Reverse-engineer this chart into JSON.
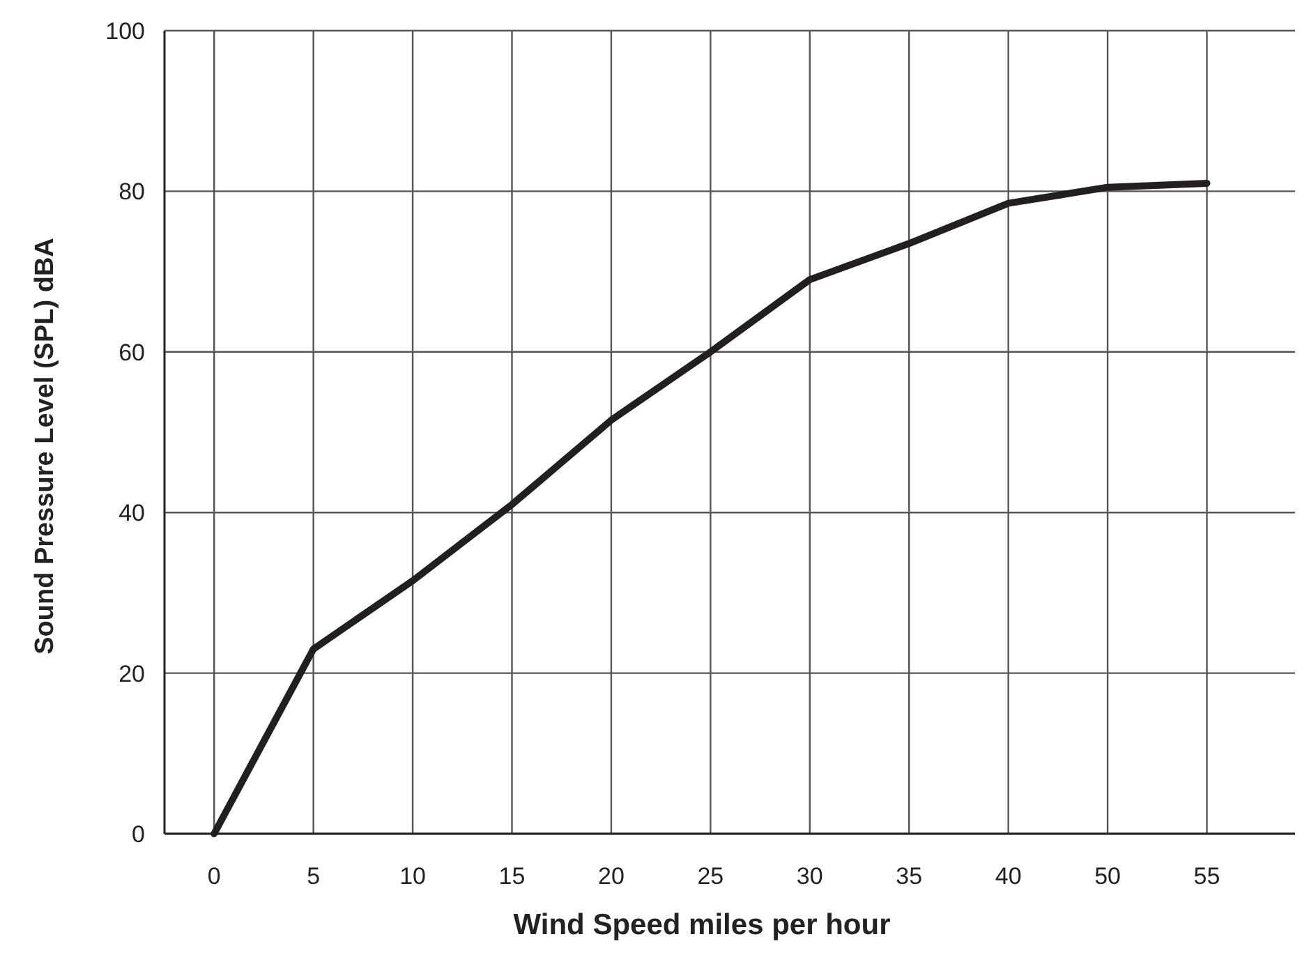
{
  "chart_data": {
    "type": "line",
    "xlabel": "Wind Speed miles per hour",
    "ylabel": "Sound Pressure Level (SPL) dBA",
    "categories": [
      "0",
      "5",
      "10",
      "15",
      "20",
      "25",
      "30",
      "35",
      "40",
      "50",
      "55"
    ],
    "series": [
      {
        "color": "#231f20",
        "values": [
          0,
          23,
          31.5,
          41,
          51.5,
          60,
          69,
          73.5,
          78.5,
          80.5,
          81
        ]
      }
    ],
    "ylim": [
      0,
      100
    ],
    "yticks": [
      0,
      20,
      40,
      60,
      80,
      100
    ],
    "grid": true
  }
}
